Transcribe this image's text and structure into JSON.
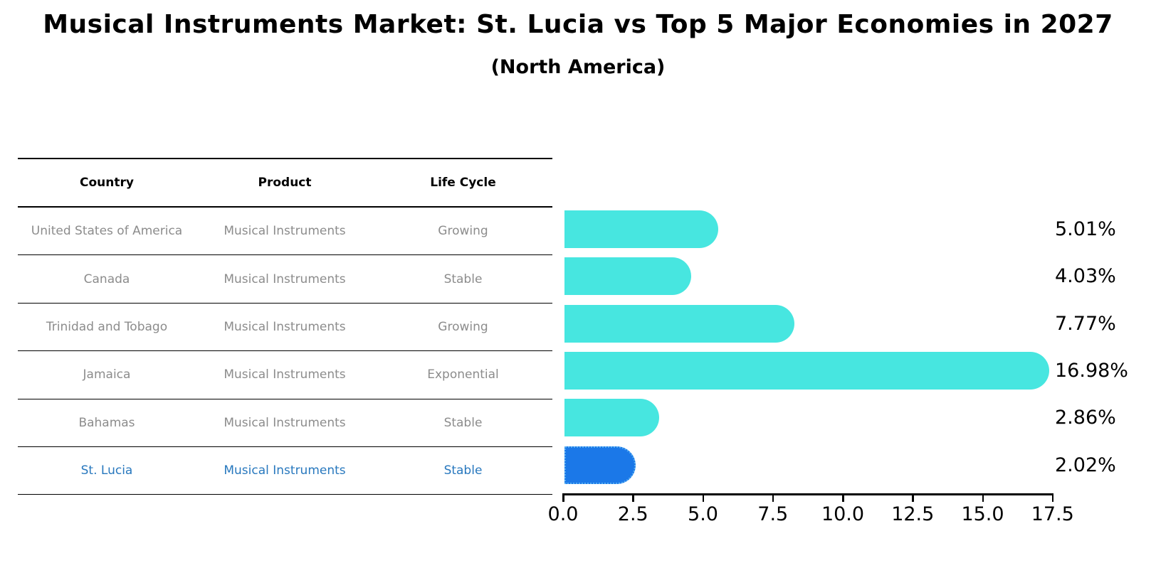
{
  "title": "Musical Instruments Market: St. Lucia vs Top 5 Major Economies in 2027",
  "subtitle": "(North America)",
  "table": {
    "headers": [
      "Country",
      "Product",
      "Life Cycle"
    ],
    "rows": [
      {
        "country": "United States of America",
        "product": "Musical Instruments",
        "life_cycle": "Growing",
        "highlight": false
      },
      {
        "country": "Canada",
        "product": "Musical Instruments",
        "life_cycle": "Stable",
        "highlight": false
      },
      {
        "country": "Trinidad and Tobago",
        "product": "Musical Instruments",
        "life_cycle": "Growing",
        "highlight": false
      },
      {
        "country": "Jamaica",
        "product": "Musical Instruments",
        "life_cycle": "Exponential",
        "highlight": false
      },
      {
        "country": "Bahamas",
        "product": "Musical Instruments",
        "life_cycle": "Stable",
        "highlight": false
      },
      {
        "country": "St. Lucia",
        "product": "Musical Instruments",
        "life_cycle": "Stable",
        "highlight": true
      }
    ]
  },
  "chart_data": {
    "type": "bar",
    "orientation": "horizontal",
    "categories": [
      "United States of America",
      "Canada",
      "Trinidad and Tobago",
      "Jamaica",
      "Bahamas",
      "St. Lucia"
    ],
    "values": [
      5.01,
      4.03,
      7.77,
      16.98,
      2.86,
      2.02
    ],
    "value_labels": [
      "5.01%",
      "4.03%",
      "7.77%",
      "16.98%",
      "2.86%",
      "2.02%"
    ],
    "life_cycles": [
      "Growing",
      "Stable",
      "Growing",
      "Exponential",
      "Stable",
      "Stable"
    ],
    "highlight_index": 5,
    "x_ticks": [
      "0.0",
      "2.5",
      "5.0",
      "7.5",
      "10.0",
      "12.5",
      "15.0",
      "17.5"
    ],
    "x_tick_values": [
      0,
      2.5,
      5,
      7.5,
      10,
      12.5,
      15,
      17.5
    ],
    "xlim": [
      0,
      17.5
    ],
    "grid": false,
    "legend": "none",
    "bar_color": "#47e6e0",
    "highlight_color": "#1b78e8",
    "highlight_text_color": "#2878be"
  }
}
